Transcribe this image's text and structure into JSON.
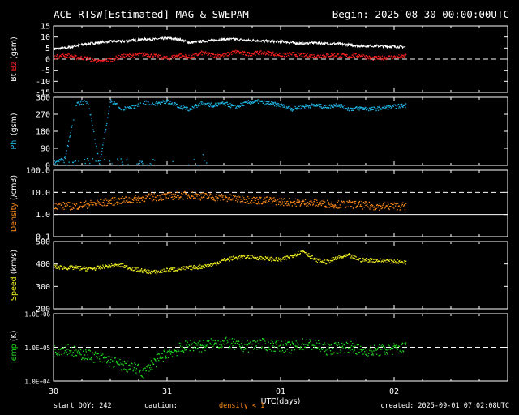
{
  "header": {
    "title": "ACE RTSW[Estimated] MAG & SWEPAM",
    "begin": "Begin: 2025-08-30 00:00:00UTC"
  },
  "footer": {
    "start_doy": "start DOY: 242",
    "caution_label": "caution:",
    "caution_text": "density < 1",
    "created": "created: 2025-09-01 07:02:08UTC"
  },
  "colors": {
    "background": "#000000",
    "axes": "#ffffff",
    "bt": "#ffffff",
    "bz": "#ff2020",
    "phi": "#20b8e8",
    "density": "#ff8c1a",
    "speed": "#f0f020",
    "temp": "#22dd22"
  },
  "chart_data": [
    {
      "type": "scatter",
      "panel": "mag",
      "ylabel_parts": [
        "Bt",
        "Bz",
        "(gsm)"
      ],
      "ylim": [
        -15,
        15
      ],
      "yticks": [
        15,
        10,
        5,
        0,
        -5,
        -10,
        -15
      ],
      "reference_lines": [
        0
      ],
      "series": [
        {
          "name": "Bt",
          "x": [
            0,
            0.1,
            0.2,
            0.3,
            0.4,
            0.5,
            0.6,
            0.7,
            0.8,
            0.9,
            1.0,
            1.1,
            1.2,
            1.3,
            1.4,
            1.5,
            1.6,
            1.7,
            1.8,
            1.9,
            2.0,
            2.1,
            2.2,
            2.3,
            2.4,
            2.5,
            2.6,
            2.7,
            2.8,
            3.1
          ],
          "values": [
            4.5,
            5.0,
            6.0,
            7.0,
            7.5,
            8.0,
            8.0,
            8.5,
            9.0,
            9.0,
            9.5,
            9.0,
            7.5,
            8.0,
            8.5,
            9.0,
            9.0,
            8.5,
            8.5,
            8.0,
            8.0,
            7.5,
            7.0,
            7.5,
            7.0,
            7.0,
            6.5,
            6.0,
            6.0,
            5.5
          ]
        },
        {
          "name": "Bz",
          "x": [
            0,
            0.1,
            0.2,
            0.3,
            0.4,
            0.5,
            0.6,
            0.7,
            0.8,
            0.9,
            1.0,
            1.1,
            1.2,
            1.3,
            1.4,
            1.5,
            1.6,
            1.7,
            1.8,
            1.9,
            2.0,
            2.1,
            2.2,
            2.3,
            2.4,
            2.5,
            2.6,
            2.7,
            2.8,
            3.1
          ],
          "values": [
            1.0,
            2.0,
            1.0,
            0.5,
            -1.0,
            0.0,
            1.5,
            2.0,
            2.5,
            1.5,
            0.5,
            2.0,
            1.0,
            3.0,
            2.0,
            2.0,
            3.5,
            2.5,
            3.0,
            3.0,
            2.0,
            2.5,
            2.0,
            1.5,
            2.0,
            2.0,
            1.5,
            2.0,
            0.5,
            1.5
          ]
        }
      ]
    },
    {
      "type": "scatter",
      "panel": "phi",
      "ylabel_parts": [
        "Phi",
        "(gsm)"
      ],
      "ylim": [
        0,
        360
      ],
      "yticks": [
        360,
        270,
        180,
        90,
        0
      ],
      "series": [
        {
          "name": "Phi",
          "x": [
            0,
            0.1,
            0.2,
            0.3,
            0.4,
            0.5,
            0.6,
            0.7,
            0.8,
            0.9,
            1.0,
            1.1,
            1.2,
            1.3,
            1.4,
            1.5,
            1.6,
            1.7,
            1.8,
            1.9,
            2.0,
            2.1,
            2.2,
            2.3,
            2.4,
            2.5,
            2.6,
            2.7,
            2.8,
            3.1
          ],
          "values": [
            15,
            40,
            330,
            340,
            10,
            345,
            300,
            310,
            335,
            330,
            340,
            315,
            300,
            330,
            320,
            330,
            310,
            335,
            340,
            330,
            320,
            300,
            315,
            320,
            310,
            325,
            300,
            305,
            300,
            320
          ]
        }
      ]
    },
    {
      "type": "scatter",
      "panel": "density",
      "ylabel_parts": [
        "Density",
        "(/cm3)"
      ],
      "yscale": "log",
      "ylim": [
        0.1,
        100.0
      ],
      "yticks": [
        "100.0",
        "10.0",
        "1.0",
        "0.1"
      ],
      "reference_lines": [
        10.0
      ],
      "solid_lines": [
        1.0
      ],
      "series": [
        {
          "name": "Density",
          "x": [
            0,
            0.1,
            0.2,
            0.3,
            0.4,
            0.5,
            0.6,
            0.7,
            0.8,
            0.9,
            1.0,
            1.1,
            1.2,
            1.3,
            1.4,
            1.5,
            1.6,
            1.7,
            1.8,
            1.9,
            2.0,
            2.1,
            2.2,
            2.3,
            2.4,
            2.5,
            2.6,
            2.7,
            2.8,
            3.1
          ],
          "values": [
            2.8,
            2.5,
            2.6,
            3.0,
            3.5,
            4.0,
            4.5,
            5.0,
            6.0,
            6.5,
            7.0,
            7.5,
            8.0,
            7.0,
            6.5,
            6.0,
            5.5,
            5.0,
            4.5,
            4.5,
            4.0,
            3.8,
            3.5,
            3.5,
            3.2,
            3.0,
            3.0,
            2.8,
            2.5,
            2.5
          ]
        }
      ]
    },
    {
      "type": "scatter",
      "panel": "speed",
      "ylabel_parts": [
        "Speed",
        "(km/s)"
      ],
      "ylim": [
        200,
        500
      ],
      "yticks": [
        500,
        400,
        300,
        200
      ],
      "series": [
        {
          "name": "Speed",
          "x": [
            0,
            0.1,
            0.2,
            0.3,
            0.4,
            0.5,
            0.6,
            0.7,
            0.8,
            0.9,
            1.0,
            1.1,
            1.2,
            1.3,
            1.4,
            1.5,
            1.6,
            1.7,
            1.8,
            1.9,
            2.0,
            2.1,
            2.2,
            2.3,
            2.4,
            2.5,
            2.6,
            2.7,
            2.8,
            3.1
          ],
          "values": [
            390,
            385,
            385,
            380,
            385,
            395,
            395,
            380,
            370,
            365,
            375,
            380,
            385,
            390,
            400,
            420,
            430,
            435,
            430,
            425,
            420,
            440,
            460,
            420,
            410,
            430,
            440,
            420,
            420,
            410
          ]
        }
      ]
    },
    {
      "type": "scatter",
      "panel": "temp",
      "ylabel_parts": [
        "Temp",
        "(K)"
      ],
      "yscale": "log",
      "ylim": [
        10000,
        1000000
      ],
      "yticks": [
        "1.0E+06",
        "1.0E+05",
        "1.0E+04"
      ],
      "reference_lines": [
        100000
      ],
      "series": [
        {
          "name": "Temp",
          "x": [
            0,
            0.1,
            0.2,
            0.3,
            0.4,
            0.5,
            0.6,
            0.7,
            0.8,
            0.9,
            1.0,
            1.1,
            1.2,
            1.3,
            1.4,
            1.5,
            1.6,
            1.7,
            1.8,
            1.9,
            2.0,
            2.1,
            2.2,
            2.3,
            2.4,
            2.5,
            2.6,
            2.7,
            2.8,
            3.1
          ],
          "values": [
            80000,
            100000,
            70000,
            60000,
            50000,
            40000,
            30000,
            25000,
            18000,
            40000,
            70000,
            90000,
            120000,
            110000,
            130000,
            140000,
            120000,
            110000,
            130000,
            120000,
            110000,
            100000,
            130000,
            120000,
            90000,
            100000,
            110000,
            80000,
            80000,
            100000
          ]
        }
      ]
    }
  ],
  "x_axis": {
    "xlim": [
      0,
      4
    ],
    "xlabel": "UTC(days)",
    "tick_labels": [
      "30",
      "31",
      "01",
      "02"
    ]
  }
}
